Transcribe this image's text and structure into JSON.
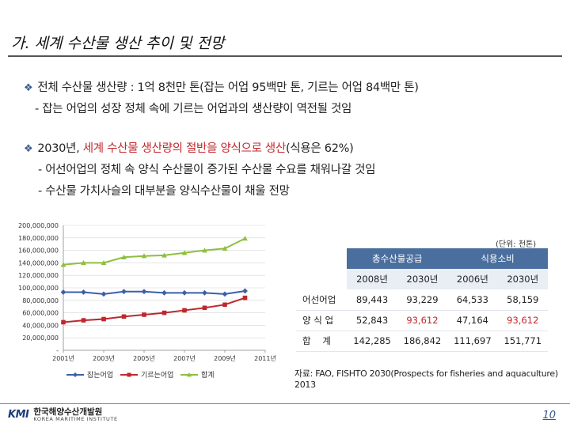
{
  "slide": {
    "title": "가. 세계 수산물 생산 추이 및 전망",
    "page_number": "10"
  },
  "bullets": {
    "b1": "전체 수산물 생산량 : 1억 8천만 톤(잡는 어업 95백만 톤, 기르는 어업 84백만 톤)",
    "b1_sub": "- 잡는 어업의 성장 정체 속에 기르는 어업과의 생산량이 역전될 것임",
    "b2_prefix": "2030년, ",
    "b2_red": "세계 수산물 생산량의 절반을 양식으로 생산",
    "b2_suffix": "(식용은 62%)",
    "b2_sub1": "- 어선어업의 정체 속 양식 수산물이 증가된 수산물 수요를 채워나갈 것임",
    "b2_sub2": "- 수산물 가치사슬의 대부분을 양식수산물이 채울 전망"
  },
  "chart_data": {
    "type": "line",
    "x": [
      2001,
      2002,
      2003,
      2004,
      2005,
      2006,
      2007,
      2008,
      2009,
      2010
    ],
    "x_tick_labels": [
      "2001년",
      "2003년",
      "2005년",
      "2007년",
      "2009년",
      "2011년"
    ],
    "y_tick_labels": [
      "-",
      "20,000,000",
      "40,000,000",
      "60,000,000",
      "80,000,000",
      "100,000,000",
      "120,000,000",
      "140,000,000",
      "160,000,000",
      "180,000,000",
      "200,000,000"
    ],
    "ylim": [
      0,
      200000000
    ],
    "xlim": [
      2001,
      2011
    ],
    "series": [
      {
        "name": "잡는어업",
        "color": "#3d5fa8",
        "marker": "diamond",
        "values": [
          93000000,
          93000000,
          90000000,
          94000000,
          94000000,
          92000000,
          92000000,
          92000000,
          90000000,
          95000000
        ]
      },
      {
        "name": "기르는어업",
        "color": "#c0272d",
        "marker": "square",
        "values": [
          45000000,
          48000000,
          50000000,
          54000000,
          57000000,
          60000000,
          64000000,
          68000000,
          73000000,
          84000000
        ]
      },
      {
        "name": "합계",
        "color": "#8fbf3f",
        "marker": "triangle",
        "values": [
          137000000,
          140000000,
          140000000,
          149000000,
          151000000,
          152000000,
          156000000,
          160000000,
          163000000,
          179000000
        ]
      }
    ]
  },
  "table": {
    "unit": "(단위: 천톤)",
    "group_supply": "총수산물공급",
    "group_consumption": "식용소비",
    "years": [
      "2008년",
      "2030년",
      "2006년",
      "2030년"
    ],
    "rows": [
      {
        "label": "어선어업",
        "values": [
          "89,443",
          "93,229",
          "64,533",
          "58,159"
        ]
      },
      {
        "label": "양 식 업",
        "values": [
          "52,843",
          "93,612",
          "47,164",
          "93,612"
        ]
      },
      {
        "label": "합    계",
        "values": [
          "142,285",
          "186,842",
          "111,697",
          "151,771"
        ]
      }
    ],
    "highlight_color": "#c0272d"
  },
  "source": "자료: FAO, FISHTO 2030(Prospects for fisheries and aquaculture) 2013",
  "footer": {
    "logo_mark": "KMI",
    "logo_kr": "한국해양수산개발원",
    "logo_en": "KOREA MARITIME INSTITUTE"
  }
}
